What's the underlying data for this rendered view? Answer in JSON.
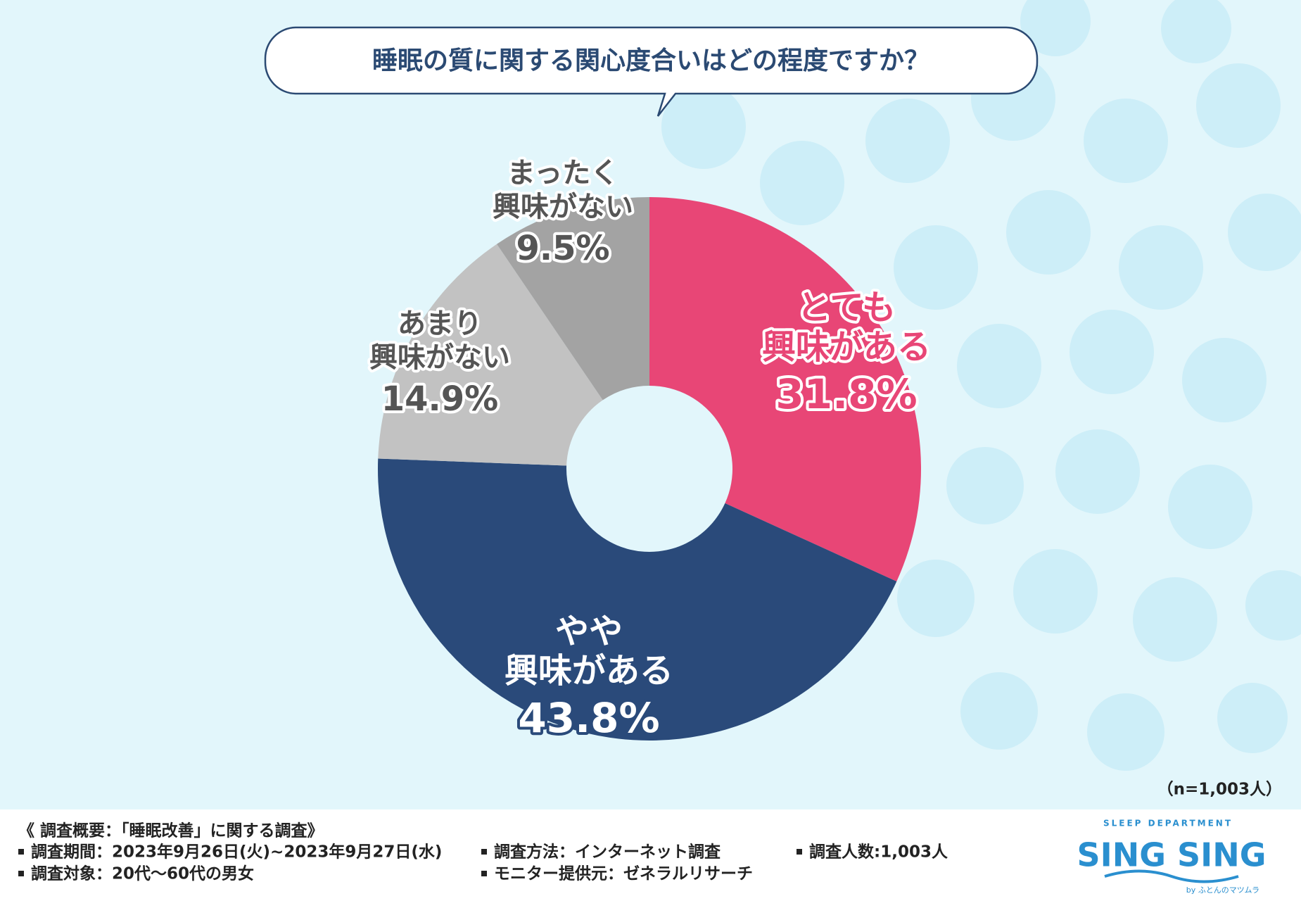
{
  "chart_data": {
    "type": "donut",
    "title": "睡眠の質に関する関心度合いはどの程度ですか？",
    "categories": [
      [
        "とても",
        "興味がある"
      ],
      [
        "やや",
        "興味がある"
      ],
      [
        "あまり",
        "興味がない"
      ],
      [
        "まったく",
        "興味がない"
      ]
    ],
    "values": [
      31.8,
      43.8,
      14.9,
      9.5
    ],
    "value_labels": [
      "31.8%",
      "43.8%",
      "14.9%",
      "9.5%"
    ],
    "colors": [
      "#e84676",
      "#2a4a7a",
      "#c2c2c2",
      "#a3a3a3"
    ],
    "note": "（n=1,003人）"
  },
  "footer": {
    "heading": "《 調査概要：「睡眠改善」に関する調査》",
    "items": [
      "調査期間：2023年9月26日(火)~2023年9月27日(水)",
      "調査方法：インターネット調査",
      "調査人数:1,003人",
      "調査対象：20代～60代の男女",
      "モニター提供元：ゼネラルリサーチ"
    ]
  },
  "logo": {
    "tagline": "SLEEP DEPARTMENT",
    "name": "SING SING",
    "by": "by ふとんのマツムラ"
  }
}
